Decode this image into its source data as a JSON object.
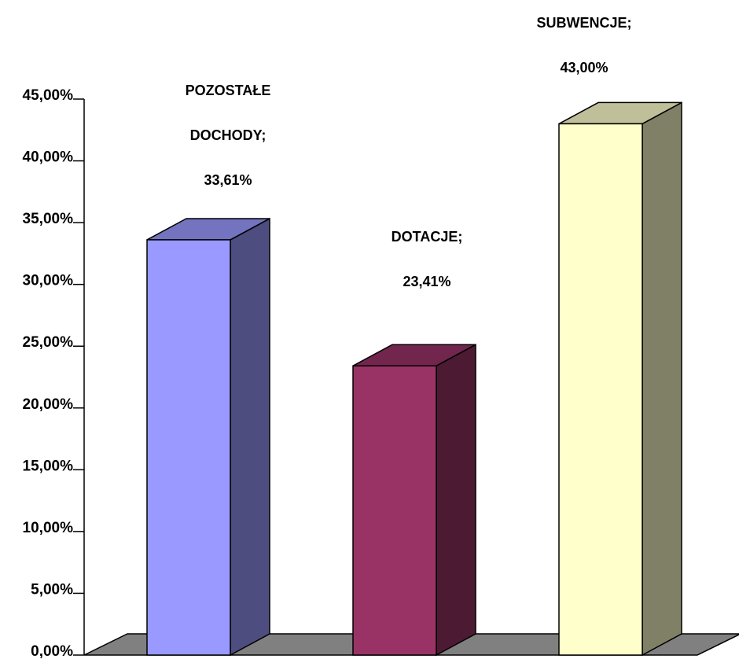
{
  "chart_data": {
    "type": "bar",
    "style": "3d-column",
    "categories": [
      "POZOSTAŁE DOCHODY",
      "DOTACJE",
      "SUBWENCJE"
    ],
    "values": [
      33.61,
      23.41,
      43.0
    ],
    "data_labels": [
      [
        "POZOSTAŁE",
        "DOCHODY;",
        "33,61%"
      ],
      [
        "DOTACJE;",
        "23,41%"
      ],
      [
        "SUBWENCJE;",
        "43,00%"
      ]
    ],
    "ylim": [
      0,
      45
    ],
    "y_ticks": [
      "0,00%",
      "5,00%",
      "10,00%",
      "15,00%",
      "20,00%",
      "25,00%",
      "30,00%",
      "35,00%",
      "40,00%",
      "45,00%"
    ],
    "title": "",
    "xlabel": "",
    "ylabel": "",
    "legend": false,
    "grid": false,
    "colors": {
      "bar_front": [
        "#9999ff",
        "#993366",
        "#ffffcc"
      ],
      "bar_side": [
        "#4d4d80",
        "#4d1a33",
        "#808066"
      ],
      "bar_top": [
        "#7373bf",
        "#73264d",
        "#bfbf99"
      ],
      "floor": "#808080",
      "outline": "#000000"
    }
  }
}
